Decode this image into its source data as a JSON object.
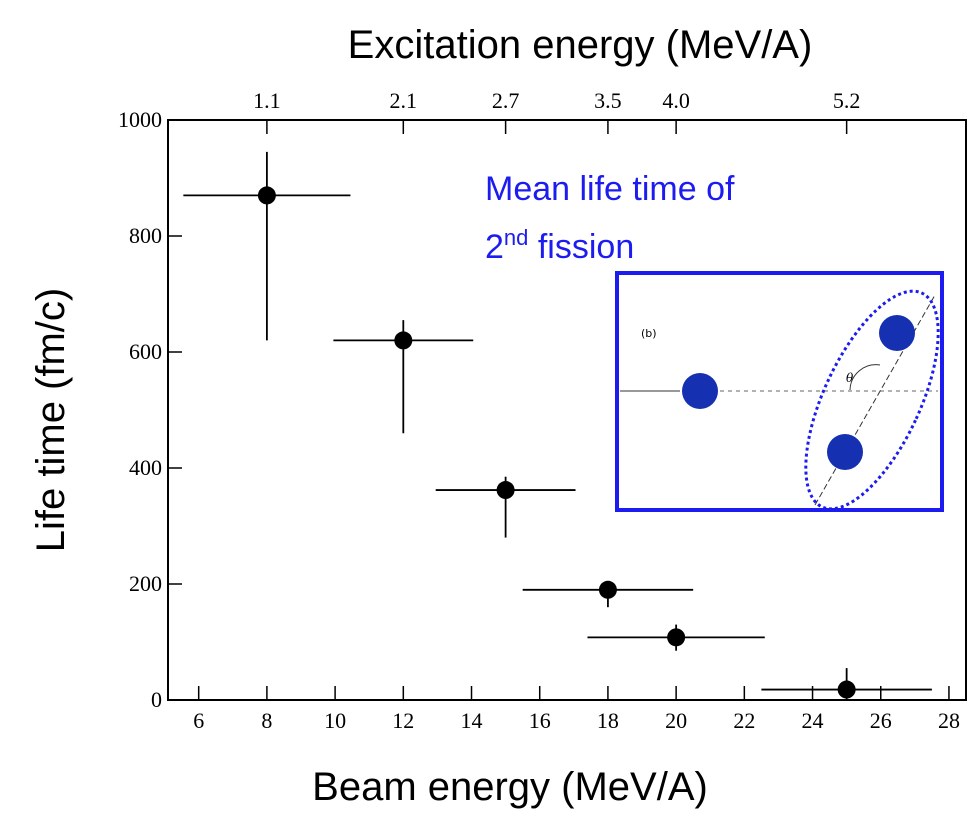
{
  "chart_data": {
    "type": "scatter",
    "title": "Excitation energy (MeV/A)",
    "x_label": "Beam energy (MeV/A)",
    "y_label": "Life time (fm/c)",
    "series": [
      {
        "color": "#000000",
        "x": [
          8,
          12,
          15,
          18,
          20,
          25
        ],
        "y": [
          870,
          620,
          362,
          190,
          108,
          18
        ],
        "x_err": [
          2.45,
          2.05,
          2.05,
          2.5,
          2.6,
          2.5
        ],
        "y_err_high": [
          75,
          35,
          23,
          10,
          22,
          37
        ],
        "y_err_low": [
          250,
          160,
          82,
          30,
          23,
          18
        ]
      }
    ],
    "xlim": [
      5.1,
      28.5
    ],
    "ylim": [
      0,
      1000
    ],
    "xticks": [
      6,
      8,
      10,
      12,
      14,
      16,
      18,
      20,
      22,
      24,
      26,
      28
    ],
    "yticks": [
      0,
      200,
      400,
      600,
      800,
      1000
    ],
    "x2ticks": [
      {
        "value": 8,
        "label": "1.1"
      },
      {
        "value": 12,
        "label": "2.1"
      },
      {
        "value": 15,
        "label": "2.7"
      },
      {
        "value": 18,
        "label": "3.5"
      },
      {
        "value": 20,
        "label": "4.0"
      },
      {
        "value": 25,
        "label": "5.2"
      }
    ],
    "annotation": [
      "Mean life time of",
      "2",
      "nd",
      " fission"
    ],
    "inset_labels": [
      "(b)",
      "θ"
    ]
  }
}
